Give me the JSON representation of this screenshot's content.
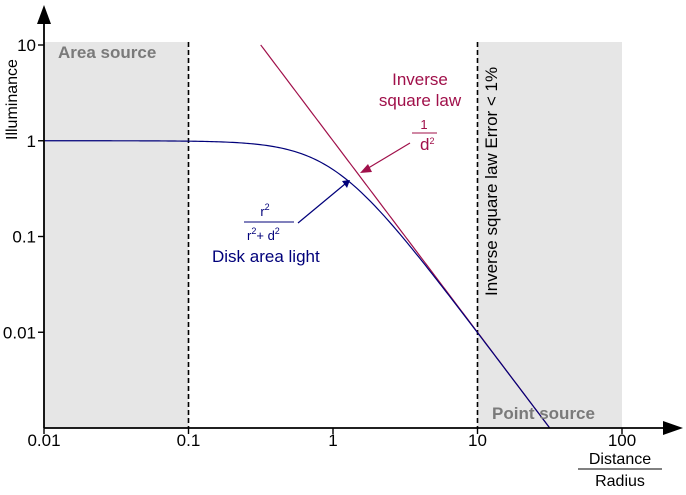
{
  "chart_data": {
    "type": "line",
    "title": "",
    "xscale": "log",
    "yscale": "log",
    "xlim": [
      0.01,
      100
    ],
    "ylim": [
      0.001,
      10
    ],
    "x_ticks": [
      "0.01",
      "0.1",
      "1",
      "10",
      "100"
    ],
    "y_ticks": [
      "0.01",
      "0.1",
      "1",
      "10"
    ],
    "xlabel": {
      "numerator": "Distance",
      "denominator": "Radius"
    },
    "ylabel": "Illuminance",
    "regions": [
      {
        "label": "Area source",
        "x": [
          0.01,
          0.1
        ],
        "color": "#e6e6e6"
      },
      {
        "label": "Point source",
        "x": [
          10,
          100
        ],
        "color": "#e6e6e6"
      }
    ],
    "thresholds": [
      {
        "x": 0.1,
        "label": ""
      },
      {
        "x": 10,
        "label": "Inverse square law Error < 1%"
      }
    ],
    "series": [
      {
        "name": "Inverse square law",
        "formula": "1/d²",
        "color": "#a0104a",
        "x": [
          0.316,
          0.5,
          1,
          2,
          5,
          10,
          20,
          31.6
        ],
        "y": [
          10,
          4,
          1,
          0.25,
          0.04,
          0.01,
          0.0025,
          0.001
        ]
      },
      {
        "name": "Disk area light",
        "formula": "r²/(r²+ d²)",
        "color": "#00007a",
        "x": [
          0.01,
          0.1,
          0.2,
          0.5,
          1,
          2,
          5,
          10,
          20,
          31.6
        ],
        "y": [
          0.9999,
          0.9901,
          0.9615,
          0.8,
          0.5,
          0.2,
          0.0385,
          0.0099,
          0.0025,
          0.001
        ]
      }
    ],
    "annotations": {
      "isl_title_line1": "Inverse",
      "isl_title_line2": "square law",
      "isl_formula_num": "1",
      "isl_formula_den": "d",
      "disk_formula_num": "r",
      "disk_formula_den_a": "r",
      "disk_formula_den_b": "+ d",
      "disk_title": "Disk area light",
      "sup2": "2"
    }
  }
}
